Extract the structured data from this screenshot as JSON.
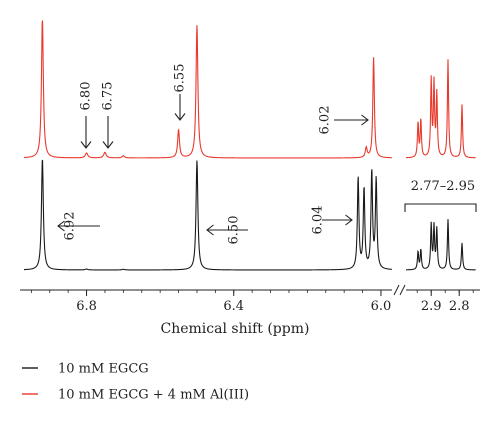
{
  "chart_data": {
    "type": "line",
    "xlabel": "Chemical shift (ppm)",
    "x_axis_left": {
      "range": [
        6.97,
        5.97
      ],
      "ticks": [
        6.8,
        6.4,
        6.0
      ],
      "tick_labels": [
        "6.8",
        "6.4",
        "6.0"
      ]
    },
    "x_axis_right": {
      "range": [
        2.99,
        2.74
      ],
      "ticks": [
        2.9,
        2.8
      ],
      "tick_labels": [
        "2.9",
        "2.8"
      ]
    },
    "axis_break": true,
    "grid": false,
    "legend": {
      "placement": "bottom-left",
      "entries": [
        {
          "label": "10 mM EGCG",
          "color": "#1a1a1a"
        },
        {
          "label": "10 mM EGCG + 4 mM Al(III)",
          "color": "#e8392c"
        }
      ]
    },
    "series": [
      {
        "name": "10 mM EGCG",
        "color": "#1a1a1a",
        "peaks": [
          {
            "x": 6.92,
            "h": 1.0,
            "w": 0.003
          },
          {
            "x": 6.8,
            "h": 0.008,
            "w": 0.004
          },
          {
            "x": 6.7,
            "h": 0.006,
            "w": 0.004
          },
          {
            "x": 6.5,
            "h": 0.98,
            "w": 0.003
          },
          {
            "x": 6.062,
            "h": 0.82,
            "w": 0.0025
          },
          {
            "x": 6.046,
            "h": 0.72,
            "w": 0.0025
          },
          {
            "x": 6.025,
            "h": 0.87,
            "w": 0.0025
          },
          {
            "x": 6.013,
            "h": 0.8,
            "w": 0.0025
          },
          {
            "x": 2.947,
            "h": 0.16,
            "w": 0.0025
          },
          {
            "x": 2.937,
            "h": 0.18,
            "w": 0.0025
          },
          {
            "x": 2.9,
            "h": 0.4,
            "w": 0.0025
          },
          {
            "x": 2.89,
            "h": 0.38,
            "w": 0.0025
          },
          {
            "x": 2.88,
            "h": 0.36,
            "w": 0.0025
          },
          {
            "x": 2.84,
            "h": 0.45,
            "w": 0.0025
          },
          {
            "x": 2.79,
            "h": 0.24,
            "w": 0.0025
          }
        ]
      },
      {
        "name": "10 mM EGCG + 4 mM Al(III)",
        "color": "#e8392c",
        "peaks": [
          {
            "x": 6.92,
            "h": 1.0,
            "w": 0.003
          },
          {
            "x": 6.8,
            "h": 0.035,
            "w": 0.004
          },
          {
            "x": 6.75,
            "h": 0.04,
            "w": 0.004
          },
          {
            "x": 6.7,
            "h": 0.015,
            "w": 0.004
          },
          {
            "x": 6.55,
            "h": 0.2,
            "w": 0.003
          },
          {
            "x": 6.5,
            "h": 0.95,
            "w": 0.003
          },
          {
            "x": 6.04,
            "h": 0.07,
            "w": 0.003
          },
          {
            "x": 6.02,
            "h": 0.72,
            "w": 0.0025
          },
          {
            "x": 2.947,
            "h": 0.25,
            "w": 0.0025
          },
          {
            "x": 2.937,
            "h": 0.27,
            "w": 0.0025
          },
          {
            "x": 2.9,
            "h": 0.55,
            "w": 0.0025
          },
          {
            "x": 2.89,
            "h": 0.52,
            "w": 0.0025
          },
          {
            "x": 2.88,
            "h": 0.45,
            "w": 0.0025
          },
          {
            "x": 2.84,
            "h": 0.7,
            "w": 0.0025
          },
          {
            "x": 2.79,
            "h": 0.38,
            "w": 0.0025
          }
        ]
      }
    ],
    "annotations": [
      {
        "id": "ann-680",
        "text": "6.80",
        "series": 1,
        "arrow": "down",
        "x": 6.8
      },
      {
        "id": "ann-675",
        "text": "6.75",
        "series": 1,
        "arrow": "down",
        "x": 6.75
      },
      {
        "id": "ann-655",
        "text": "6.55",
        "series": 1,
        "arrow": "down",
        "x": 6.55
      },
      {
        "id": "ann-602",
        "text": "6.02",
        "series": 1,
        "arrow": "right",
        "x": 6.02
      },
      {
        "id": "ann-692",
        "text": "6.92",
        "series": 0,
        "arrow": "left",
        "x": 6.92
      },
      {
        "id": "ann-650",
        "text": "6.50",
        "series": 0,
        "arrow": "left",
        "x": 6.5
      },
      {
        "id": "ann-604",
        "text": "6.04",
        "series": 0,
        "arrow": "right",
        "x": 6.04
      },
      {
        "id": "ann-range",
        "text": "2.77–2.95",
        "series": 0,
        "arrow": "bracket",
        "x": [
          2.95,
          2.77
        ]
      }
    ]
  }
}
